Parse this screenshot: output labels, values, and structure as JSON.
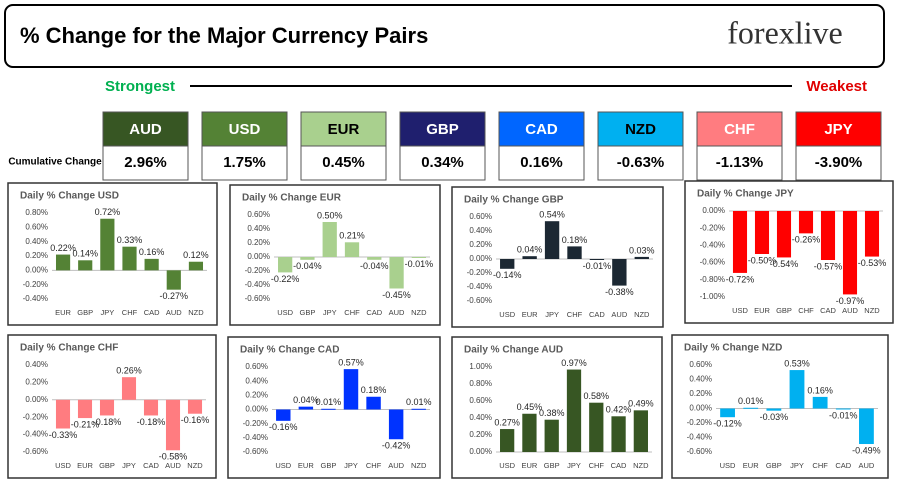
{
  "header": {
    "title": "% Change for the Major Currency Pairs",
    "logo": "forexlive"
  },
  "ranking": {
    "strongest": "Strongest",
    "weakest": "Weakest",
    "row_label": "Cumulative Change",
    "items": [
      {
        "name": "AUD",
        "value": "2.96%",
        "color": "#375623",
        "text_color": "#ffffff"
      },
      {
        "name": "USD",
        "value": "1.75%",
        "color": "#548235",
        "text_color": "#ffffff"
      },
      {
        "name": "EUR",
        "value": "0.45%",
        "color": "#a9d08e",
        "text_color": "#000000"
      },
      {
        "name": "GBP",
        "value": "0.34%",
        "color": "#1f1f6e",
        "text_color": "#ffffff"
      },
      {
        "name": "CAD",
        "value": "0.16%",
        "color": "#0066ff",
        "text_color": "#ffffff"
      },
      {
        "name": "NZD",
        "value": "-0.63%",
        "color": "#00b0f0",
        "text_color": "#000000"
      },
      {
        "name": "CHF",
        "value": "-1.13%",
        "color": "#ff7c80",
        "text_color": "#ffffff"
      },
      {
        "name": "JPY",
        "value": "-3.90%",
        "color": "#ff0000",
        "text_color": "#ffffff"
      }
    ]
  },
  "chart_data": [
    {
      "type": "bar",
      "title": "Daily % Change USD",
      "color": "#548235",
      "categories": [
        "EUR",
        "GBP",
        "JPY",
        "CHF",
        "CAD",
        "AUD",
        "NZD"
      ],
      "values": [
        0.22,
        0.14,
        0.72,
        0.33,
        0.16,
        -0.27,
        0.12
      ],
      "value_labels": [
        "0.22%",
        "0.14%",
        "0.72%",
        "0.33%",
        "0.16%",
        "-0.27%",
        "0.12%"
      ],
      "ylim": [
        -0.4,
        0.8
      ],
      "yticks": [
        {
          "value": 0.8,
          "label": "0.80%"
        },
        {
          "value": 0.6,
          "label": "0.60%"
        },
        {
          "value": 0.4,
          "label": "0.40%"
        },
        {
          "value": 0.2,
          "label": "0.20%"
        },
        {
          "value": 0,
          "label": "0.00%"
        },
        {
          "value": -0.2,
          "label": "-0.20%"
        },
        {
          "value": -0.4,
          "label": "-0.40%"
        }
      ]
    },
    {
      "type": "bar",
      "title": "Daily % Change EUR",
      "color": "#a9d08e",
      "categories": [
        "USD",
        "GBP",
        "JPY",
        "CHF",
        "CAD",
        "AUD",
        "NZD"
      ],
      "values": [
        -0.22,
        -0.04,
        0.5,
        0.21,
        -0.04,
        -0.45,
        -0.01
      ],
      "value_labels": [
        "-0.22%",
        "-0.04%",
        "0.50%",
        "0.21%",
        "-0.04%",
        "-0.45%",
        "-0.01%"
      ],
      "ylim": [
        -0.6,
        0.6
      ],
      "yticks": [
        {
          "value": 0.6,
          "label": "0.60%"
        },
        {
          "value": 0.4,
          "label": "0.40%"
        },
        {
          "value": 0.2,
          "label": "0.20%"
        },
        {
          "value": 0,
          "label": "0.00%"
        },
        {
          "value": -0.2,
          "label": "-0.20%"
        },
        {
          "value": -0.4,
          "label": "-0.40%"
        },
        {
          "value": -0.6,
          "label": "-0.60%"
        }
      ]
    },
    {
      "type": "bar",
      "title": "Daily % Change GBP",
      "color": "#1c2833",
      "categories": [
        "USD",
        "EUR",
        "JPY",
        "CHF",
        "CAD",
        "AUD",
        "NZD"
      ],
      "values": [
        -0.14,
        0.04,
        0.54,
        0.18,
        -0.01,
        -0.38,
        0.03
      ],
      "value_labels": [
        "-0.14%",
        "0.04%",
        "0.54%",
        "0.18%",
        "-0.01%",
        "-0.38%",
        "0.03%"
      ],
      "ylim": [
        -0.6,
        0.6
      ],
      "yticks": [
        {
          "value": 0.6,
          "label": "0.60%"
        },
        {
          "value": 0.4,
          "label": "0.40%"
        },
        {
          "value": 0.2,
          "label": "0.20%"
        },
        {
          "value": 0,
          "label": "0.00%"
        },
        {
          "value": -0.2,
          "label": "-0.20%"
        },
        {
          "value": -0.4,
          "label": "-0.40%"
        },
        {
          "value": -0.6,
          "label": "-0.60%"
        }
      ]
    },
    {
      "type": "bar",
      "title": "Daily % Change JPY",
      "color": "#ff0000",
      "categories": [
        "USD",
        "EUR",
        "GBP",
        "CHF",
        "CAD",
        "AUD",
        "NZD"
      ],
      "values": [
        -0.72,
        -0.5,
        -0.54,
        -0.26,
        -0.57,
        -0.97,
        -0.53
      ],
      "value_labels": [
        "-0.72%",
        "-0.50%",
        "-0.54%",
        "-0.26%",
        "-0.57%",
        "-0.97%",
        "-0.53%"
      ],
      "ylim": [
        -1.0,
        0
      ],
      "yticks": [
        {
          "value": 0,
          "label": "0.00%"
        },
        {
          "value": -0.2,
          "label": "-0.20%"
        },
        {
          "value": -0.4,
          "label": "-0.40%"
        },
        {
          "value": -0.6,
          "label": "-0.60%"
        },
        {
          "value": -0.8,
          "label": "-0.80%"
        },
        {
          "value": -1.0,
          "label": "-1.00%"
        }
      ]
    },
    {
      "type": "bar",
      "title": "Daily % Change CHF",
      "color": "#ff7c80",
      "categories": [
        "USD",
        "EUR",
        "GBP",
        "JPY",
        "CAD",
        "AUD",
        "NZD"
      ],
      "values": [
        -0.33,
        -0.21,
        -0.18,
        0.26,
        -0.18,
        -0.58,
        -0.16
      ],
      "value_labels": [
        "-0.33%",
        "-0.21%",
        "-0.18%",
        "0.26%",
        "-0.18%",
        "-0.58%",
        "-0.16%"
      ],
      "ylim": [
        -0.6,
        0.4
      ],
      "yticks": [
        {
          "value": 0.4,
          "label": "0.40%"
        },
        {
          "value": 0.2,
          "label": "0.20%"
        },
        {
          "value": 0,
          "label": "0.00%"
        },
        {
          "value": -0.2,
          "label": "-0.20%"
        },
        {
          "value": -0.4,
          "label": "-0.40%"
        },
        {
          "value": -0.6,
          "label": "-0.60%"
        }
      ]
    },
    {
      "type": "bar",
      "title": "Daily % Change CAD",
      "color": "#0033ff",
      "categories": [
        "USD",
        "EUR",
        "GBP",
        "JPY",
        "CHF",
        "AUD",
        "NZD"
      ],
      "values": [
        -0.16,
        0.04,
        0.01,
        0.57,
        0.18,
        -0.42,
        0.01
      ],
      "value_labels": [
        "-0.16%",
        "0.04%",
        "0.01%",
        "0.57%",
        "0.18%",
        "-0.42%",
        "0.01%"
      ],
      "ylim": [
        -0.6,
        0.6
      ],
      "yticks": [
        {
          "value": 0.6,
          "label": "0.60%"
        },
        {
          "value": 0.4,
          "label": "0.40%"
        },
        {
          "value": 0.2,
          "label": "0.20%"
        },
        {
          "value": 0,
          "label": "0.00%"
        },
        {
          "value": -0.2,
          "label": "-0.20%"
        },
        {
          "value": -0.4,
          "label": "-0.40%"
        },
        {
          "value": -0.6,
          "label": "-0.60%"
        }
      ]
    },
    {
      "type": "bar",
      "title": "Daily % Change AUD",
      "color": "#375623",
      "categories": [
        "USD",
        "EUR",
        "GBP",
        "JPY",
        "CHF",
        "CAD",
        "NZD"
      ],
      "values": [
        0.27,
        0.45,
        0.38,
        0.97,
        0.58,
        0.42,
        0.49
      ],
      "value_labels": [
        "0.27%",
        "0.45%",
        "0.38%",
        "0.97%",
        "0.58%",
        "0.42%",
        "0.49%"
      ],
      "ylim": [
        0,
        1.0
      ],
      "yticks": [
        {
          "value": 1.0,
          "label": "1.00%"
        },
        {
          "value": 0.8,
          "label": "0.80%"
        },
        {
          "value": 0.6,
          "label": "0.60%"
        },
        {
          "value": 0.4,
          "label": "0.40%"
        },
        {
          "value": 0.2,
          "label": "0.20%"
        },
        {
          "value": 0,
          "label": "0.00%"
        }
      ]
    },
    {
      "type": "bar",
      "title": "Daily % Change NZD",
      "color": "#00b0f0",
      "categories": [
        "USD",
        "EUR",
        "GBP",
        "JPY",
        "CHF",
        "CAD",
        "AUD"
      ],
      "values": [
        -0.12,
        0.01,
        -0.03,
        0.53,
        0.16,
        -0.01,
        -0.49
      ],
      "value_labels": [
        "-0.12%",
        "0.01%",
        "-0.03%",
        "0.53%",
        "0.16%",
        "-0.01%",
        "-0.49%"
      ],
      "ylim": [
        -0.6,
        0.6
      ],
      "yticks": [
        {
          "value": 0.6,
          "label": "0.60%"
        },
        {
          "value": 0.4,
          "label": "0.40%"
        },
        {
          "value": 0.2,
          "label": "0.20%"
        },
        {
          "value": 0,
          "label": "0.00%"
        },
        {
          "value": -0.2,
          "label": "-0.20%"
        },
        {
          "value": -0.4,
          "label": "-0.40%"
        },
        {
          "value": -0.6,
          "label": "-0.60%"
        }
      ]
    }
  ]
}
